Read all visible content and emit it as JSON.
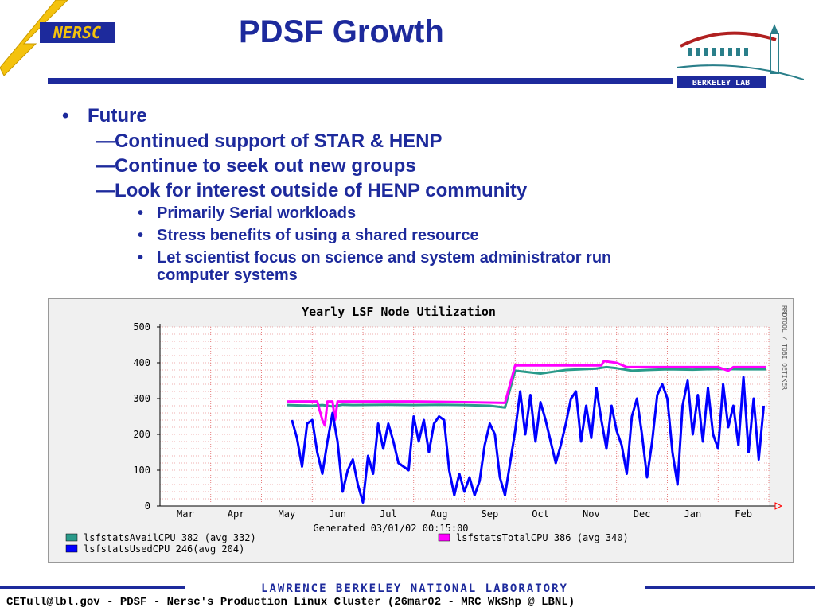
{
  "slide": {
    "title": "PDSF Growth",
    "nersc_logo_text": "NERSC",
    "berkeley_logo_text": "BERKELEY LAB",
    "bullet_main": "Future",
    "dashes": [
      "Continued support of STAR & HENP",
      "Continue to seek out new groups",
      "Look for interest outside of HENP community"
    ],
    "sub_bullets": [
      "Primarily Serial workloads",
      "Stress benefits of using a shared resource",
      "Let scientist focus on science and system administrator run",
      "computer systems"
    ],
    "lab_banner": "LAWRENCE BERKELEY NATIONAL LABORATORY",
    "footer": "CETull@lbl.gov - PDSF - Nersc's Production Linux Cluster (26mar02 - MRC WkShp @ LBNL)"
  },
  "colors": {
    "title_blue": "#1d2a9c",
    "avail": "#2a9a8a",
    "total": "#ff00ff",
    "used": "#0000ff",
    "grid": "#e06060"
  },
  "chart_data": {
    "type": "line",
    "title": "Yearly LSF Node Utilization",
    "side_label": "RRDTOOL / TOBI OETIKER",
    "generated": "Generated 03/01/02 00:15:00",
    "categories": [
      "Mar",
      "Apr",
      "May",
      "Jun",
      "Jul",
      "Aug",
      "Sep",
      "Oct",
      "Nov",
      "Dec",
      "Jan",
      "Feb"
    ],
    "yticks": [
      0,
      100,
      200,
      300,
      400,
      500
    ],
    "ylim": [
      0,
      500
    ],
    "grid": true,
    "x_range_months": [
      0,
      12
    ],
    "series": [
      {
        "name": "lsfstatsAvailCPU",
        "legend": "lsfstatsAvailCPU      382   (avg 332)",
        "x": [
          2.5,
          3.0,
          3.2,
          3.4,
          3.6,
          3.8,
          4.5,
          5.0,
          5.5,
          6.0,
          6.5,
          6.8,
          7.0,
          7.5,
          7.8,
          8.0,
          8.3,
          8.6,
          8.8,
          9.0,
          9.3,
          9.6,
          10.0,
          10.5,
          11.0,
          11.5,
          11.95
        ],
        "y": [
          282,
          280,
          282,
          278,
          283,
          282,
          283,
          282,
          283,
          282,
          280,
          275,
          378,
          370,
          376,
          380,
          382,
          384,
          388,
          385,
          378,
          380,
          382,
          381,
          383,
          382,
          382
        ]
      },
      {
        "name": "lsfstatsTotalCPU",
        "legend": "lsfstatsTotalCPU      386   (avg 340)",
        "x": [
          2.5,
          3.1,
          3.2,
          3.25,
          3.3,
          3.4,
          3.45,
          3.5,
          3.6,
          4.0,
          5.0,
          6.0,
          6.8,
          7.0,
          8.0,
          8.7,
          8.75,
          9.0,
          9.2,
          9.5,
          10.0,
          11.0,
          11.2,
          11.3,
          11.5,
          11.95
        ],
        "y": [
          292,
          292,
          240,
          225,
          292,
          292,
          240,
          292,
          292,
          292,
          292,
          290,
          288,
          393,
          393,
          393,
          405,
          400,
          388,
          388,
          388,
          388,
          378,
          388,
          388,
          388
        ]
      },
      {
        "name": "lsfstatsUsedCPU",
        "legend": "lsfstatsUsedCPU     246(avg 204)",
        "x": [
          2.6,
          2.7,
          2.8,
          2.9,
          3.0,
          3.1,
          3.2,
          3.3,
          3.4,
          3.5,
          3.6,
          3.7,
          3.8,
          3.9,
          4.0,
          4.1,
          4.2,
          4.3,
          4.4,
          4.5,
          4.6,
          4.7,
          4.8,
          4.9,
          5.0,
          5.1,
          5.2,
          5.3,
          5.4,
          5.5,
          5.6,
          5.7,
          5.8,
          5.9,
          6.0,
          6.1,
          6.2,
          6.3,
          6.4,
          6.5,
          6.6,
          6.7,
          6.8,
          7.0,
          7.1,
          7.2,
          7.3,
          7.4,
          7.5,
          7.6,
          7.7,
          7.8,
          7.9,
          8.0,
          8.1,
          8.2,
          8.3,
          8.4,
          8.5,
          8.6,
          8.7,
          8.8,
          8.9,
          9.0,
          9.1,
          9.2,
          9.3,
          9.4,
          9.5,
          9.6,
          9.7,
          9.8,
          9.9,
          10.0,
          10.1,
          10.2,
          10.3,
          10.4,
          10.5,
          10.6,
          10.7,
          10.8,
          10.9,
          11.0,
          11.1,
          11.2,
          11.3,
          11.4,
          11.5,
          11.6,
          11.7,
          11.8,
          11.9
        ],
        "y": [
          240,
          190,
          110,
          230,
          240,
          150,
          90,
          180,
          260,
          180,
          40,
          100,
          130,
          60,
          10,
          140,
          90,
          230,
          160,
          230,
          180,
          120,
          110,
          100,
          250,
          180,
          240,
          150,
          230,
          250,
          240,
          100,
          30,
          90,
          40,
          80,
          30,
          70,
          170,
          230,
          200,
          80,
          30,
          210,
          320,
          200,
          310,
          180,
          290,
          240,
          180,
          120,
          170,
          230,
          300,
          320,
          180,
          280,
          190,
          330,
          240,
          160,
          280,
          210,
          170,
          90,
          250,
          300,
          200,
          80,
          180,
          310,
          340,
          300,
          150,
          60,
          280,
          350,
          200,
          310,
          180,
          330,
          200,
          160,
          340,
          220,
          280,
          170,
          360,
          150,
          300,
          130,
          280
        ]
      }
    ]
  }
}
